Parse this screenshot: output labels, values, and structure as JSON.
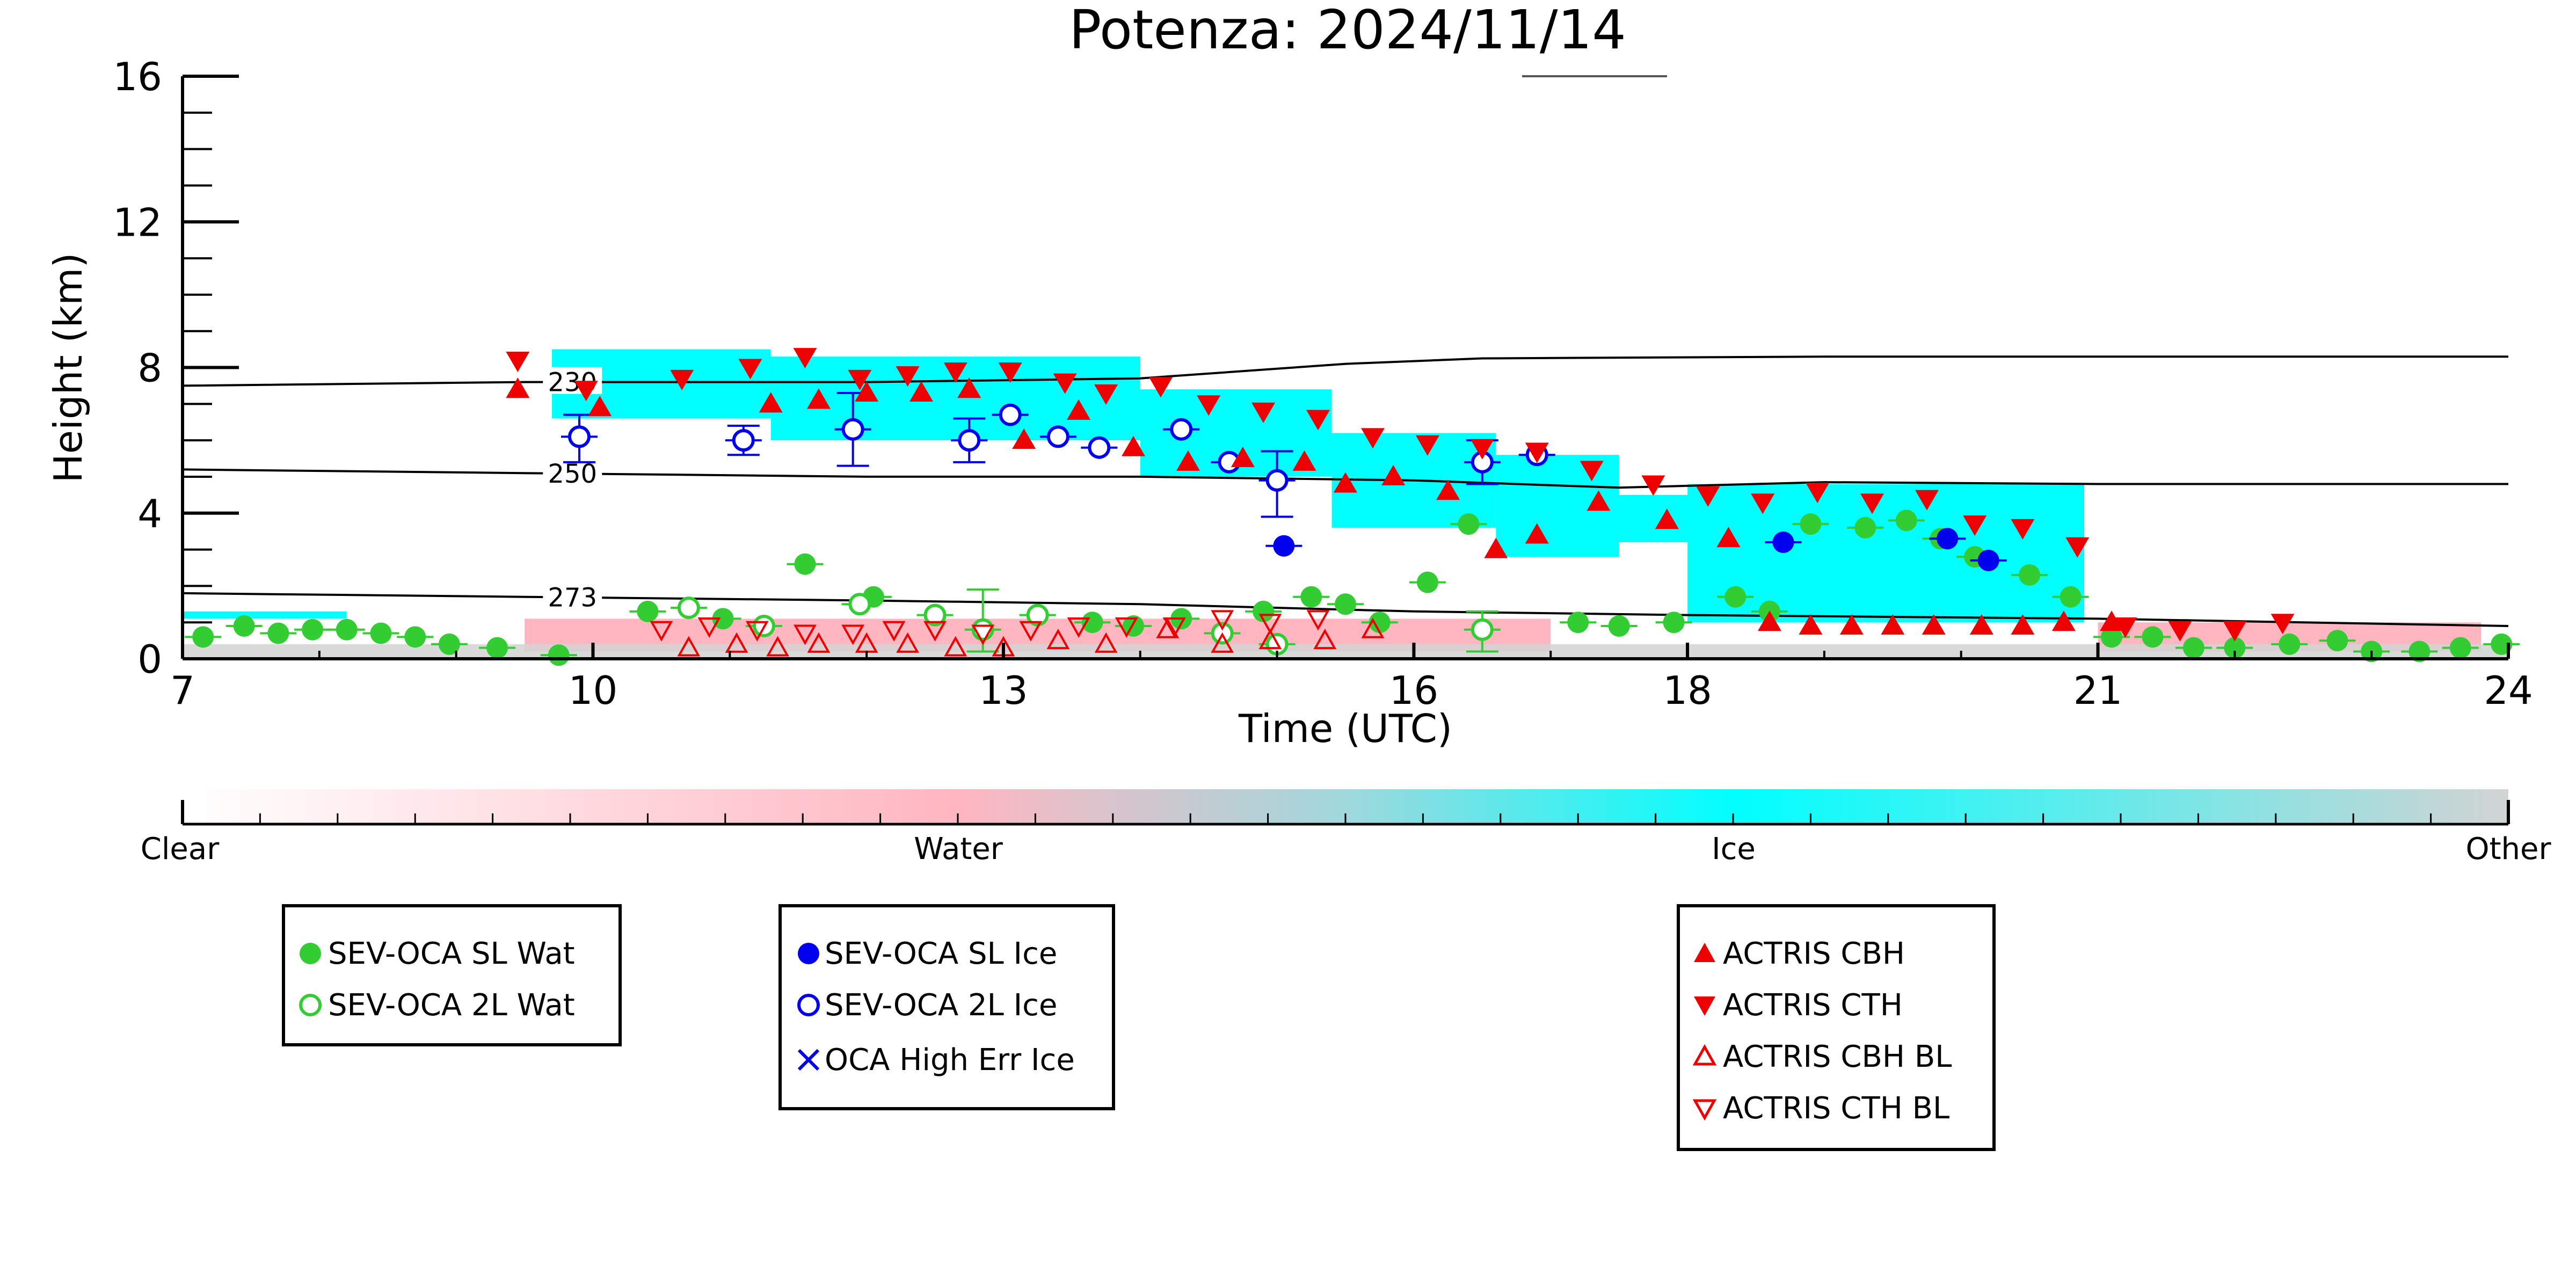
{
  "chart_data": {
    "type": "scatter",
    "title": "Potenza: 2024/11/14",
    "xlabel": "Time (UTC)",
    "ylabel": "Height (km)",
    "xlim": [
      7,
      24
    ],
    "ylim": [
      0,
      16
    ],
    "x_ticks": [
      "7",
      "10",
      "13",
      "16",
      "18",
      "21",
      "24"
    ],
    "y_ticks": [
      "0",
      "4",
      "8",
      "12",
      "16"
    ],
    "contours": [
      {
        "label": "230",
        "points": [
          [
            7,
            7.5
          ],
          [
            9.5,
            7.6
          ],
          [
            12,
            7.6
          ],
          [
            14,
            7.7
          ],
          [
            15.5,
            8.1
          ],
          [
            16.5,
            8.25
          ],
          [
            19,
            8.3
          ],
          [
            24,
            8.3
          ]
        ]
      },
      {
        "label": "250",
        "points": [
          [
            7,
            5.2
          ],
          [
            9.5,
            5.1
          ],
          [
            12,
            5.0
          ],
          [
            14,
            5.0
          ],
          [
            16,
            4.9
          ],
          [
            17.5,
            4.7
          ],
          [
            19,
            4.85
          ],
          [
            21,
            4.8
          ],
          [
            24,
            4.8
          ]
        ]
      },
      {
        "label": "273",
        "points": [
          [
            7,
            1.8
          ],
          [
            9.5,
            1.7
          ],
          [
            12,
            1.6
          ],
          [
            14,
            1.5
          ],
          [
            16,
            1.3
          ],
          [
            18,
            1.2
          ],
          [
            21,
            1.1
          ],
          [
            24,
            0.9
          ]
        ]
      }
    ],
    "colorbar": {
      "labels": [
        "Clear",
        "Water",
        "Ice",
        "Other"
      ],
      "colors": [
        "#ffffff",
        "#ffb6c1",
        "#00ffff",
        "#d3d3d3"
      ]
    },
    "cloud_mask": [
      {
        "class": "Ice",
        "color": "#00ffff",
        "x0": 9.7,
        "x1": 11.3,
        "ybot": 6.6,
        "ytop": 8.5
      },
      {
        "class": "Ice",
        "color": "#00ffff",
        "x0": 11.3,
        "x1": 14.0,
        "ybot": 6.0,
        "ytop": 8.3
      },
      {
        "class": "Ice",
        "color": "#00ffff",
        "x0": 14.0,
        "x1": 15.4,
        "ybot": 5.0,
        "ytop": 7.4
      },
      {
        "class": "Ice",
        "color": "#00ffff",
        "x0": 15.4,
        "x1": 16.6,
        "ybot": 3.6,
        "ytop": 6.2
      },
      {
        "class": "Ice",
        "color": "#00ffff",
        "x0": 16.6,
        "x1": 17.5,
        "ybot": 2.8,
        "ytop": 5.6
      },
      {
        "class": "Ice",
        "color": "#00ffff",
        "x0": 17.3,
        "x1": 18.0,
        "ybot": 3.2,
        "ytop": 4.5
      },
      {
        "class": "Ice",
        "color": "#00ffff",
        "x0": 18.0,
        "x1": 20.9,
        "ybot": 1.0,
        "ytop": 4.8
      },
      {
        "class": "Ice",
        "color": "#00ffff",
        "x0": 7.0,
        "x1": 8.2,
        "ybot": 1.1,
        "ytop": 1.3
      },
      {
        "class": "Water",
        "color": "#ffb6c1",
        "x0": 9.5,
        "x1": 17.0,
        "ybot": 0.2,
        "ytop": 1.1
      },
      {
        "class": "Water",
        "color": "#ffb6c1",
        "x0": 21.0,
        "x1": 23.8,
        "ybot": 0.2,
        "ytop": 1.0
      },
      {
        "class": "Other",
        "color": "#d3d3d3",
        "x0": 7.0,
        "x1": 24.0,
        "ybot": 0.0,
        "ytop": 0.4
      }
    ],
    "series": [
      {
        "name": "SEV-OCA SL Wat",
        "marker": "filled-circle",
        "color": "#33cc33",
        "x": [
          7.15,
          7.45,
          7.7,
          7.95,
          8.2,
          8.45,
          8.7,
          8.95,
          9.3,
          9.75,
          10.4,
          10.95,
          11.55,
          12.05,
          13.65,
          13.95,
          14.3,
          14.9,
          15.25,
          15.5,
          15.75,
          16.1,
          16.4,
          17.2,
          17.5,
          17.9,
          18.35,
          18.6,
          18.9,
          19.3,
          19.6,
          19.85,
          20.1,
          20.5,
          20.8,
          21.1,
          21.4,
          21.7,
          22.0,
          22.4,
          22.75,
          23.0,
          23.35,
          23.65,
          23.95
        ],
        "y": [
          0.6,
          0.9,
          0.7,
          0.8,
          0.8,
          0.7,
          0.6,
          0.4,
          0.3,
          0.1,
          1.3,
          1.1,
          2.6,
          1.7,
          1.0,
          0.9,
          1.1,
          1.3,
          1.7,
          1.5,
          1.0,
          2.1,
          3.7,
          1.0,
          0.9,
          1.0,
          1.7,
          1.3,
          3.7,
          3.6,
          3.8,
          3.3,
          2.8,
          2.3,
          1.7,
          0.6,
          0.6,
          0.3,
          0.3,
          0.4,
          0.5,
          0.2,
          0.2,
          0.3,
          0.4
        ]
      },
      {
        "name": "SEV-OCA 2L Wat",
        "marker": "open-circle",
        "color": "#33cc33",
        "x": [
          10.7,
          11.25,
          11.95,
          12.5,
          12.85,
          13.25,
          14.6,
          15.0,
          16.5
        ],
        "y": [
          1.4,
          0.9,
          1.5,
          1.2,
          0.8,
          1.2,
          0.7,
          0.4,
          0.8
        ]
      },
      {
        "name": "SEV-OCA SL Ice",
        "marker": "filled-circle",
        "color": "#0000ee",
        "x": [
          15.05,
          18.7,
          19.9,
          20.2
        ],
        "y": [
          3.1,
          3.2,
          3.3,
          2.7
        ]
      },
      {
        "name": "SEV-OCA 2L Ice",
        "marker": "open-circle",
        "color": "#0000ee",
        "x": [
          9.9,
          11.1,
          11.9,
          12.75,
          13.05,
          13.4,
          13.7,
          14.3,
          14.65,
          15.0,
          16.5,
          16.9
        ],
        "y": [
          6.1,
          6.0,
          6.3,
          6.0,
          6.7,
          6.1,
          5.8,
          6.3,
          5.4,
          4.9,
          5.4,
          5.6
        ]
      },
      {
        "name": "OCA High Err Ice",
        "marker": "x",
        "color": "#0000ee",
        "x": [],
        "y": []
      },
      {
        "name": "ACTRIS CBH",
        "marker": "triangle-up",
        "color": "#ee0000",
        "x": [
          9.45,
          10.05,
          11.3,
          11.65,
          12.0,
          12.4,
          12.75,
          13.15,
          13.55,
          13.95,
          14.35,
          14.75,
          15.2,
          15.5,
          15.85,
          16.25,
          16.6,
          16.9,
          17.35,
          17.85,
          18.3,
          18.6,
          18.9,
          19.2,
          19.5,
          19.8,
          20.15,
          20.45,
          20.75,
          21.1
        ],
        "y": [
          7.4,
          6.9,
          7.0,
          7.1,
          7.3,
          7.3,
          7.4,
          6.0,
          6.8,
          5.8,
          5.4,
          5.5,
          5.4,
          4.8,
          5.0,
          4.6,
          3.0,
          3.4,
          4.3,
          3.8,
          3.3,
          1.0,
          0.9,
          0.9,
          0.9,
          0.9,
          0.9,
          0.9,
          1.0,
          1.0
        ]
      },
      {
        "name": "ACTRIS CTH",
        "marker": "triangle-down",
        "color": "#ee0000",
        "x": [
          9.45,
          9.95,
          10.65,
          11.15,
          11.55,
          11.95,
          12.3,
          12.65,
          13.05,
          13.45,
          13.75,
          14.15,
          14.5,
          14.9,
          15.3,
          15.7,
          16.1,
          16.5,
          16.9,
          17.3,
          17.75,
          18.15,
          18.55,
          18.95,
          19.35,
          19.75,
          20.1,
          20.45,
          20.85,
          21.2,
          21.6,
          22.0,
          22.35
        ],
        "y": [
          8.2,
          7.4,
          7.7,
          8.0,
          8.3,
          7.7,
          7.8,
          7.9,
          7.9,
          7.6,
          7.3,
          7.5,
          7.0,
          6.8,
          6.6,
          6.1,
          5.9,
          5.8,
          5.7,
          5.2,
          4.8,
          4.5,
          4.3,
          4.6,
          4.3,
          4.4,
          3.7,
          3.6,
          3.1,
          0.9,
          0.8,
          0.8,
          1.0
        ]
      },
      {
        "name": "ACTRIS CBH BL",
        "marker": "open-triangle-up",
        "color": "#ee0000",
        "x": [
          10.7,
          11.05,
          11.35,
          11.65,
          12.0,
          12.3,
          12.65,
          13.0,
          13.4,
          13.75,
          14.2,
          14.6,
          14.95,
          15.35,
          15.7
        ],
        "y": [
          0.3,
          0.4,
          0.3,
          0.4,
          0.4,
          0.4,
          0.3,
          0.3,
          0.5,
          0.4,
          0.8,
          0.4,
          0.5,
          0.5,
          0.8
        ]
      },
      {
        "name": "ACTRIS CTH BL",
        "marker": "open-triangle-down",
        "color": "#ee0000",
        "x": [
          10.5,
          10.85,
          11.2,
          11.55,
          11.9,
          12.2,
          12.5,
          12.85,
          13.2,
          13.55,
          13.9,
          14.25,
          14.6,
          14.95,
          15.3
        ],
        "y": [
          0.8,
          0.9,
          0.8,
          0.7,
          0.7,
          0.8,
          0.8,
          0.7,
          0.8,
          0.9,
          0.9,
          0.9,
          1.1,
          1.0,
          1.1
        ]
      }
    ],
    "errorbars": [
      {
        "x": 9.9,
        "y": 6.1,
        "ylo": 5.4,
        "yhi": 6.7,
        "color": "#0000ee"
      },
      {
        "x": 11.1,
        "y": 6.0,
        "ylo": 5.6,
        "yhi": 6.4,
        "color": "#0000ee"
      },
      {
        "x": 11.9,
        "y": 6.3,
        "ylo": 5.3,
        "yhi": 7.3,
        "color": "#0000ee"
      },
      {
        "x": 12.75,
        "y": 6.0,
        "ylo": 5.4,
        "yhi": 6.6,
        "color": "#0000ee"
      },
      {
        "x": 15.0,
        "y": 4.9,
        "ylo": 3.9,
        "yhi": 5.7,
        "color": "#0000ee"
      },
      {
        "x": 16.5,
        "y": 5.4,
        "ylo": 4.8,
        "yhi": 6.0,
        "color": "#0000ee"
      },
      {
        "x": 12.85,
        "y": 0.8,
        "ylo": 0.2,
        "yhi": 1.9,
        "color": "#33cc33"
      },
      {
        "x": 16.5,
        "y": 0.8,
        "ylo": 0.2,
        "yhi": 1.3,
        "color": "#33cc33"
      }
    ]
  },
  "legends": {
    "group1": [
      "SEV-OCA SL Wat",
      "SEV-OCA 2L Wat"
    ],
    "group2": [
      "SEV-OCA SL Ice",
      "SEV-OCA 2L Ice",
      "OCA High Err Ice"
    ],
    "group3": [
      "ACTRIS CBH",
      "ACTRIS CTH",
      "ACTRIS CBH BL",
      "ACTRIS CTH BL"
    ]
  }
}
